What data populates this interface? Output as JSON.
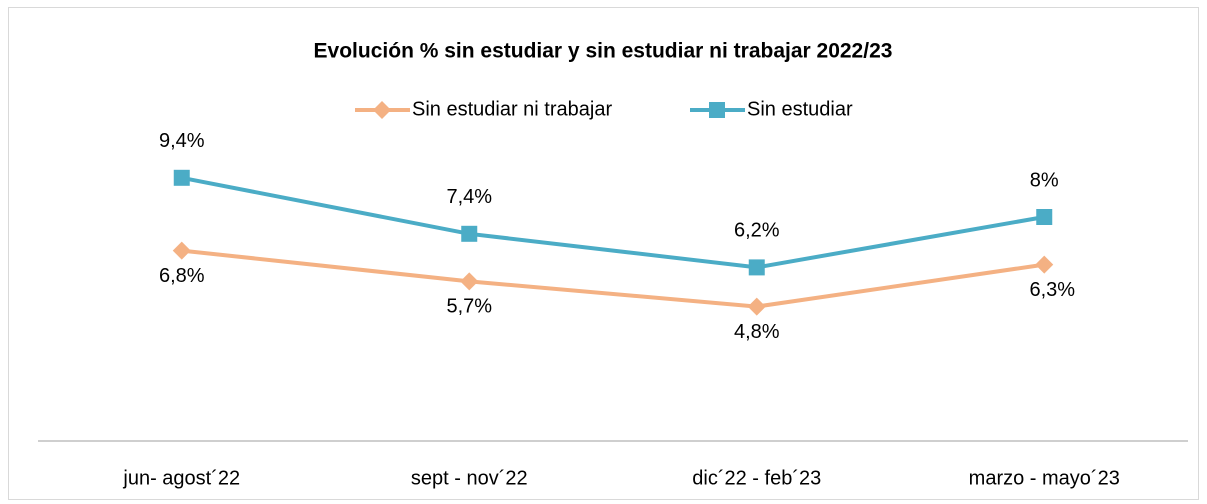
{
  "chart_data": {
    "type": "line",
    "title": "Evolución % sin estudiar y sin estudiar ni trabajar 2022/23",
    "categories": [
      "jun- agost´22",
      "sept - nov´22",
      "dic´22 - feb´23",
      "marzo - mayo´23"
    ],
    "series": [
      {
        "name": "Sin estudiar ni trabajar",
        "color": "#f4b183",
        "marker": "diamond",
        "values": [
          6.8,
          5.7,
          4.8,
          6.3
        ],
        "value_labels": [
          "6,8%",
          "5,7%",
          "4,8%",
          "6,3%"
        ]
      },
      {
        "name": "Sin estudiar",
        "color": "#4bacc6",
        "marker": "square",
        "values": [
          9.4,
          7.4,
          6.2,
          8
        ],
        "value_labels": [
          "9,4%",
          "7,4%",
          "6,2%",
          "8%"
        ]
      }
    ],
    "ylim": [
      0,
      12
    ],
    "legend": "top"
  }
}
